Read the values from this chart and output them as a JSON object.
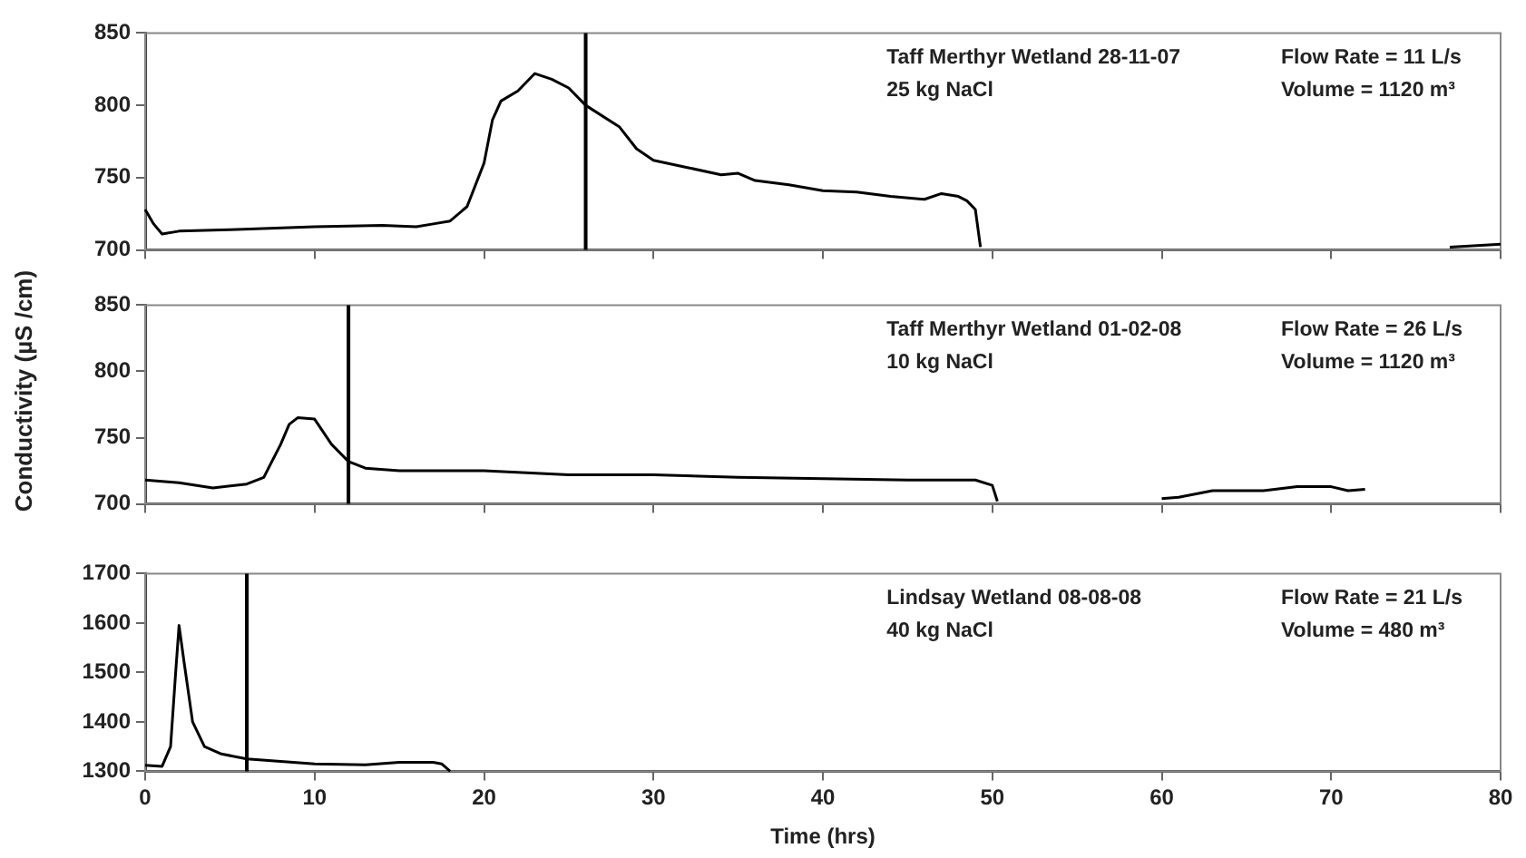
{
  "chart_data": [
    {
      "type": "line",
      "xlim": [
        0,
        80
      ],
      "xticks": [
        0,
        10,
        20,
        30,
        40,
        50,
        60,
        70,
        80
      ],
      "ylim": [
        700,
        850
      ],
      "yticks": [
        700,
        750,
        800,
        850
      ],
      "tick_labels": "y",
      "grid": false,
      "legend": false,
      "marker": "none",
      "line_style": "solid",
      "series": [
        {
          "color": "#000000",
          "x": [
            0,
            0.5,
            1,
            2,
            5,
            10,
            14,
            16,
            17,
            18,
            19,
            20,
            20.5,
            21,
            22,
            23,
            24,
            25,
            26,
            28,
            29,
            30,
            32,
            34,
            35,
            36,
            38,
            40,
            42,
            44,
            46,
            47,
            48,
            48.5,
            49,
            49.3,
            60,
            77,
            80
          ],
          "values": [
            728,
            718,
            711,
            713,
            714,
            716,
            717,
            716,
            718,
            720,
            730,
            760,
            790,
            803,
            810,
            822,
            818,
            812,
            800,
            785,
            770,
            762,
            757,
            752,
            753,
            748,
            745,
            741,
            740,
            737,
            735,
            739,
            737,
            734,
            728,
            702,
            null,
            702,
            704
          ]
        }
      ],
      "ref_lines": [
        {
          "axis": "x",
          "value": 26,
          "color": "#000000"
        }
      ],
      "annotations": [
        "Taff Merthyr Wetland 28-11-07",
        "25 kg NaCl",
        "Flow Rate = 11 L/s",
        "Volume = 1120 m³"
      ]
    },
    {
      "type": "line",
      "xlim": [
        0,
        80
      ],
      "xticks": [
        0,
        10,
        20,
        30,
        40,
        50,
        60,
        70,
        80
      ],
      "ylim": [
        700,
        850
      ],
      "yticks": [
        700,
        750,
        800,
        850
      ],
      "tick_labels": "y",
      "grid": false,
      "legend": false,
      "marker": "none",
      "line_style": "solid",
      "ylabel": "Conductivity (µS /cm)",
      "series": [
        {
          "color": "#000000",
          "x": [
            0,
            2,
            4,
            6,
            7,
            8,
            8.5,
            9,
            10,
            11,
            12,
            13,
            15,
            20,
            25,
            30,
            35,
            40,
            45,
            49,
            50,
            50.3,
            55,
            60,
            61,
            63,
            66,
            68,
            70,
            71,
            72
          ],
          "values": [
            718,
            716,
            712,
            715,
            720,
            745,
            760,
            765,
            764,
            745,
            732,
            727,
            725,
            725,
            722,
            722,
            720,
            719,
            718,
            718,
            714,
            702,
            null,
            704,
            705,
            710,
            710,
            713,
            713,
            710,
            711
          ]
        }
      ],
      "ref_lines": [
        {
          "axis": "x",
          "value": 12,
          "color": "#000000"
        }
      ],
      "annotations": [
        "Taff Merthyr Wetland 01-02-08",
        "10 kg NaCl",
        "Flow Rate = 26 L/s",
        "Volume = 1120 m³"
      ]
    },
    {
      "type": "line",
      "xlim": [
        0,
        80
      ],
      "xticks": [
        0,
        10,
        20,
        30,
        40,
        50,
        60,
        70,
        80
      ],
      "ylim": [
        1300,
        1700
      ],
      "yticks": [
        1300,
        1400,
        1500,
        1600,
        1700
      ],
      "grid": false,
      "legend": false,
      "marker": "none",
      "line_style": "solid",
      "xlabel": "Time (hrs)",
      "series": [
        {
          "color": "#000000",
          "x": [
            0,
            1,
            1.5,
            1.8,
            2,
            2.3,
            2.8,
            3.5,
            4.5,
            6,
            8,
            10,
            13,
            15,
            17,
            17.5,
            18
          ],
          "values": [
            1312,
            1310,
            1350,
            1500,
            1595,
            1520,
            1400,
            1350,
            1335,
            1325,
            1320,
            1315,
            1313,
            1318,
            1318,
            1315,
            1300
          ]
        }
      ],
      "ref_lines": [
        {
          "axis": "x",
          "value": 6,
          "color": "#000000"
        }
      ],
      "annotations": [
        "Lindsay Wetland 08-08-08",
        "40 kg NaCl",
        "Flow Rate = 21 L/s",
        "Volume = 480 m³"
      ]
    }
  ]
}
